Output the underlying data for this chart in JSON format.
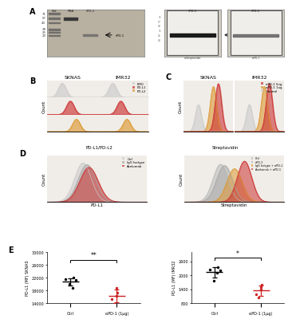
{
  "panel_B": {
    "label": "B",
    "titles": [
      "SKNAS",
      "IMR32"
    ],
    "xlabel": "PD-L1/PD-L2",
    "ylabel": "Count",
    "legend": [
      "FMO",
      "PD-L1",
      "PD-L2"
    ],
    "colors": [
      "#cccccc",
      "#cc3333",
      "#dd9933"
    ]
  },
  "panel_C": {
    "label": "C",
    "titles": [
      "SKNAS",
      "IMR32"
    ],
    "xlabel": "Streptavidin",
    "ylabel": "Count",
    "legend": [
      "αPD-1 5ng",
      "αPD-1 1ug",
      "Control"
    ],
    "colors": [
      "#cc3333",
      "#dd9933",
      "#cccccc"
    ]
  },
  "panel_D_left": {
    "label": "D",
    "xlabel": "PD-L1",
    "ylabel": "Count",
    "legend": [
      "Ctrl",
      "IgG Isotype",
      "Avelumab"
    ],
    "colors": [
      "#cc3333",
      "#cccccc",
      "#aaaaaa"
    ]
  },
  "panel_D_right": {
    "xlabel": "Streptavidin",
    "ylabel": "’Count",
    "legend": [
      "Ctrl",
      "αPD-1",
      "IgG Isotype + αPD-1",
      "Avelumab + αPD-1"
    ],
    "colors": [
      "#dd9933",
      "#cc3333",
      "#bbbbbb",
      "#aaaaaa"
    ]
  },
  "panel_E_left": {
    "label": "E",
    "ylabel": "PD-L1 (MF) SKNAS",
    "xlabel_ctrl": "Ctrl",
    "xlabel_spd1": "αPD-1 (1μg)",
    "ctrl_points": [
      21500,
      22000,
      20000,
      18800,
      21200
    ],
    "spd1_points": [
      17200,
      18800,
      15200,
      13800,
      16400
    ],
    "ctrl_mean": 20700,
    "ctrl_err": 1200,
    "spd1_mean": 16300,
    "spd1_err": 1900,
    "ylim": [
      14000,
      30000
    ],
    "yticks": [
      14000,
      18000,
      22000,
      26000,
      30000
    ],
    "sig": "**"
  },
  "panel_E_right": {
    "ylabel": "PD-L1 (MF) IMR32",
    "xlabel_ctrl": "Ctrl",
    "xlabel_spd1": "αPD-1 (1μg)",
    "ctrl_points": [
      2250,
      2350,
      1750,
      2100,
      2200
    ],
    "spd1_points": [
      1600,
      1500,
      1200,
      1050,
      1400
    ],
    "ctrl_mean": 2130,
    "ctrl_err": 220,
    "spd1_mean": 1350,
    "spd1_err": 220,
    "ylim": [
      800,
      3000
    ],
    "yticks": [
      800,
      1400,
      2000,
      2600
    ],
    "sig": "*"
  },
  "bg_color": "#f0ede8",
  "figure_bg": "#ffffff",
  "gel1_bg": "#b8b0a0",
  "gel2_bg": "#c8c0b0"
}
